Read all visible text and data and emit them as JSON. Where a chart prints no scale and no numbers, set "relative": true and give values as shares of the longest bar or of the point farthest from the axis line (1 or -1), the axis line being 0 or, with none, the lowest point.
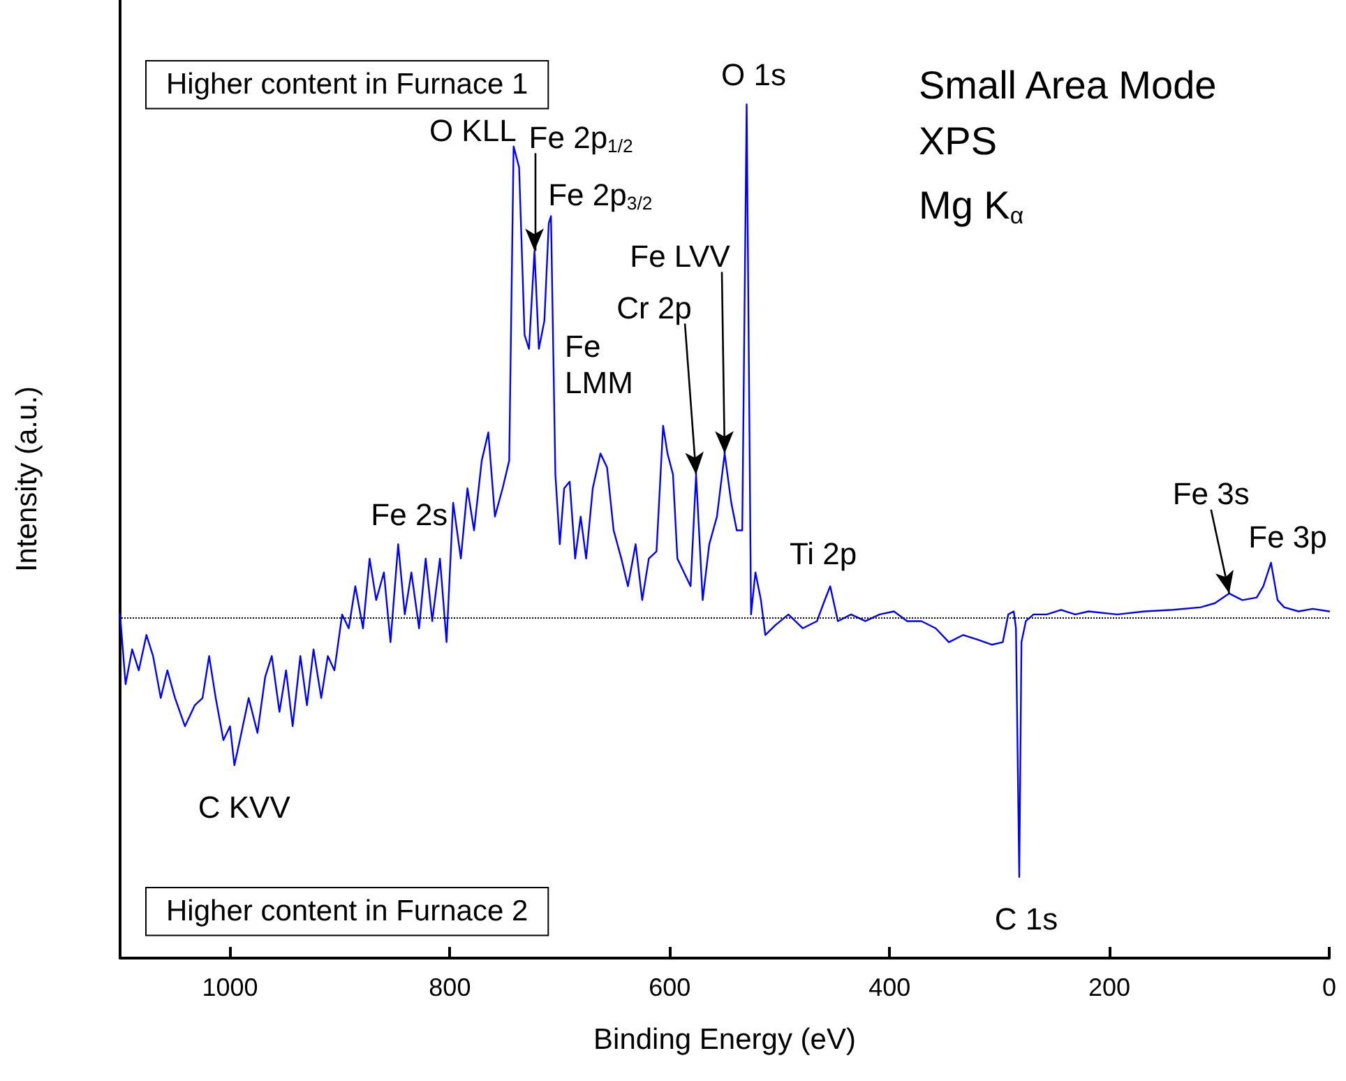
{
  "chart_data": {
    "type": "line",
    "relative": true,
    "xlabel": "Binding Energy (eV)",
    "ylabel": "Intensity (a.u.)",
    "xlim": [
      1100,
      0
    ],
    "xticks": [
      1000,
      800,
      600,
      400,
      200,
      0
    ],
    "grid": false,
    "marker": "none",
    "line_style": "solid",
    "x": [
      1100,
      1095,
      1089,
      1083,
      1076,
      1070,
      1063,
      1057,
      1050,
      1041,
      1032,
      1025,
      1019,
      1013,
      1006,
      1000,
      996,
      991,
      983,
      975,
      968,
      962,
      955,
      949,
      943,
      936,
      930,
      924,
      917,
      911,
      905,
      898,
      892,
      886,
      879,
      873,
      867,
      860,
      854,
      847,
      841,
      835,
      828,
      822,
      816,
      809,
      803,
      797,
      790,
      784,
      778,
      771,
      765,
      759,
      752,
      746,
      742,
      737,
      732,
      728,
      723,
      719,
      714,
      710,
      708,
      704,
      700,
      696,
      691,
      686,
      681,
      676,
      670,
      663,
      657,
      651,
      644,
      638,
      631,
      625,
      619,
      612,
      606,
      602,
      597,
      593,
      587,
      581,
      576,
      570,
      564,
      557,
      550,
      544,
      539,
      534,
      530,
      526,
      522,
      517,
      513,
      504,
      492,
      479,
      466,
      460,
      454,
      447,
      435,
      422,
      409,
      396,
      384,
      371,
      358,
      346,
      333,
      320,
      307,
      297,
      292,
      287,
      285,
      282,
      280,
      276,
      269,
      257,
      244,
      231,
      219,
      193,
      168,
      142,
      117,
      104,
      91,
      79,
      66,
      60,
      53,
      47,
      41,
      28,
      15,
      0
    ],
    "series": [
      {
        "color": "#0000ff",
        "values": [
          0.005,
          -0.131,
          -0.063,
          -0.104,
          -0.035,
          -0.076,
          -0.158,
          -0.104,
          -0.158,
          -0.213,
          -0.172,
          -0.158,
          -0.076,
          -0.158,
          -0.24,
          -0.213,
          -0.289,
          -0.24,
          -0.158,
          -0.226,
          -0.117,
          -0.076,
          -0.185,
          -0.104,
          -0.213,
          -0.076,
          -0.172,
          -0.063,
          -0.158,
          -0.076,
          -0.104,
          0.005,
          -0.022,
          0.06,
          -0.022,
          0.114,
          0.033,
          0.087,
          -0.049,
          0.142,
          0.005,
          0.087,
          -0.022,
          0.114,
          -0.008,
          0.114,
          -0.049,
          0.223,
          0.114,
          0.251,
          0.169,
          0.305,
          0.36,
          0.196,
          0.251,
          0.305,
          0.918,
          0.877,
          0.55,
          0.523,
          0.714,
          0.523,
          0.578,
          0.768,
          0.782,
          0.278,
          0.142,
          0.251,
          0.264,
          0.114,
          0.196,
          0.114,
          0.251,
          0.319,
          0.292,
          0.169,
          0.114,
          0.06,
          0.142,
          0.033,
          0.114,
          0.128,
          0.373,
          0.319,
          0.278,
          0.114,
          0.087,
          0.06,
          0.278,
          0.033,
          0.142,
          0.196,
          0.319,
          0.223,
          0.169,
          0.169,
          1,
          0.005,
          0.087,
          0.033,
          -0.035,
          -0.016,
          0.005,
          -0.022,
          -0.008,
          0.027,
          0.06,
          -0.008,
          0.005,
          -0.008,
          0.005,
          0.011,
          -0.008,
          -0.008,
          -0.022,
          -0.049,
          -0.035,
          -0.044,
          -0.054,
          -0.049,
          0.005,
          0.011,
          -0.022,
          -0.507,
          -0.049,
          -0.008,
          0.005,
          0.005,
          0.014,
          0.005,
          0.011,
          0.005,
          0.011,
          0.014,
          0.019,
          0.027,
          0.046,
          0.033,
          0.038,
          0.06,
          0.106,
          0.033,
          0.019,
          0.011,
          0.016,
          0.011
        ]
      }
    ],
    "ref_lines": [
      {
        "axis": "y",
        "value": 0,
        "color": "#000000",
        "line_style": "dotted"
      }
    ],
    "annotations": [
      "Higher content in Furnace 1",
      "Higher content in Furnace 2",
      "Small Area Mode",
      "XPS",
      "Mg K$_{α}$",
      {
        "text": "O KLL",
        "x": 742,
        "y": 0.918
      },
      {
        "text": "Fe 2p$_{1/2}$",
        "x": 723,
        "y": 0.714
      },
      {
        "text": "Fe 2p$_{3/2}$",
        "x": 708,
        "y": 0.782
      },
      {
        "text": "Fe LVV",
        "x": 550,
        "y": 0.319
      },
      {
        "text": "Cr 2p",
        "x": 576,
        "y": 0.278
      },
      {
        "text": "Fe LMM",
        "x": 670,
        "y": 0.251
      },
      {
        "text": "Fe 2s",
        "x": 847,
        "y": 0.142
      },
      {
        "text": "C KVV",
        "x": 996,
        "y": -0.289
      },
      {
        "text": "O 1s",
        "x": 530,
        "y": 1
      },
      {
        "text": "Ti 2p",
        "x": 454,
        "y": 0.06
      },
      {
        "text": "C 1s",
        "x": 282,
        "y": -0.507
      },
      {
        "text": "Fe 3s",
        "x": 91,
        "y": 0.046
      },
      {
        "text": "Fe 3p",
        "x": 53,
        "y": 0.106
      }
    ]
  }
}
